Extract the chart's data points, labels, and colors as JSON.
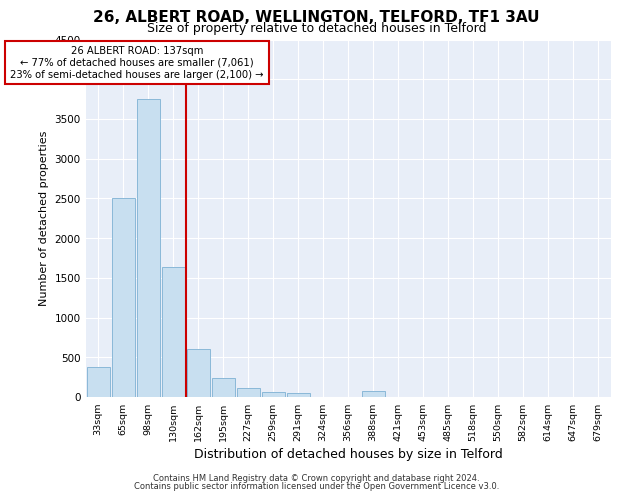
{
  "title1": "26, ALBERT ROAD, WELLINGTON, TELFORD, TF1 3AU",
  "title2": "Size of property relative to detached houses in Telford",
  "xlabel": "Distribution of detached houses by size in Telford",
  "ylabel": "Number of detached properties",
  "footer1": "Contains HM Land Registry data © Crown copyright and database right 2024.",
  "footer2": "Contains public sector information licensed under the Open Government Licence v3.0.",
  "categories": [
    "33sqm",
    "65sqm",
    "98sqm",
    "130sqm",
    "162sqm",
    "195sqm",
    "227sqm",
    "259sqm",
    "291sqm",
    "324sqm",
    "356sqm",
    "388sqm",
    "421sqm",
    "453sqm",
    "485sqm",
    "518sqm",
    "550sqm",
    "582sqm",
    "614sqm",
    "647sqm",
    "679sqm"
  ],
  "values": [
    375,
    2500,
    3750,
    1640,
    600,
    235,
    110,
    65,
    50,
    0,
    0,
    75,
    0,
    0,
    0,
    0,
    0,
    0,
    0,
    0,
    0
  ],
  "bar_color": "#c8dff0",
  "bar_edge_color": "#8ab8d8",
  "property_line_x": 3.5,
  "annotation_line1": "26 ALBERT ROAD: 137sqm",
  "annotation_line2": "← 77% of detached houses are smaller (7,061)",
  "annotation_line3": "23% of semi-detached houses are larger (2,100) →",
  "line_color": "#cc0000",
  "ylim": [
    0,
    4500
  ],
  "yticks": [
    0,
    500,
    1000,
    1500,
    2000,
    2500,
    3000,
    3500,
    4000,
    4500
  ],
  "bg_color": "#ffffff",
  "plot_bg_color": "#e8eef8",
  "title1_fontsize": 11,
  "title2_fontsize": 9,
  "xlabel_fontsize": 9,
  "ylabel_fontsize": 8
}
